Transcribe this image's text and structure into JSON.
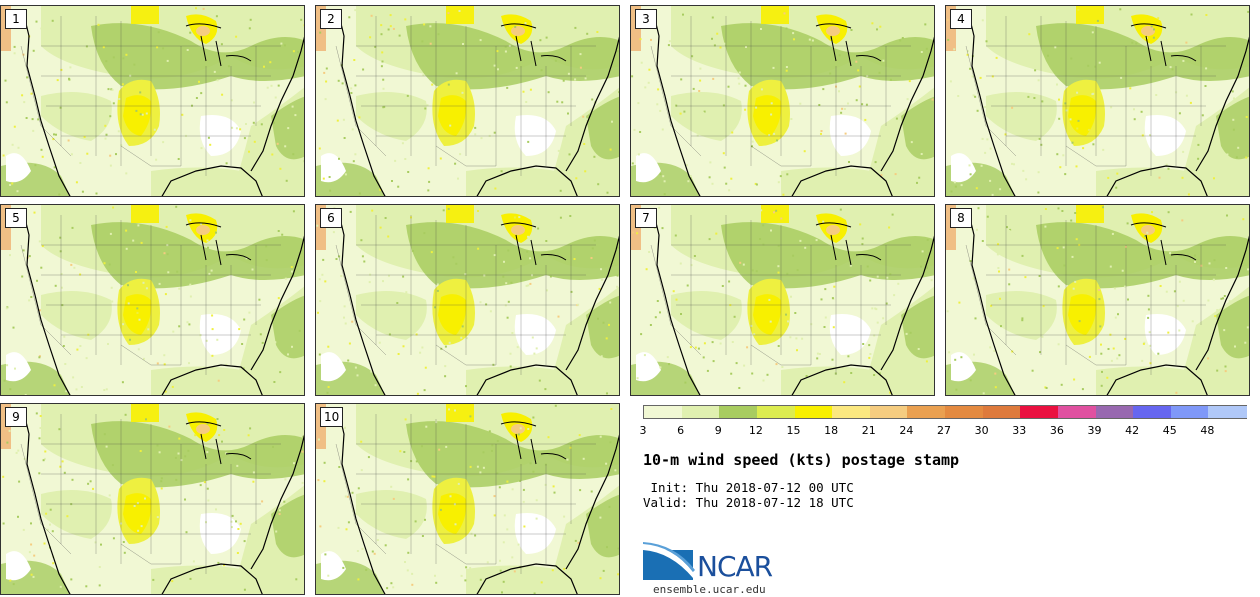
{
  "product": {
    "title": "10-m wind speed (kts) postage stamp",
    "init": " Init: Thu 2018-07-12 00 UTC",
    "valid": "Valid: Thu 2018-07-12 18 UTC"
  },
  "members": [
    "1",
    "2",
    "3",
    "4",
    "5",
    "6",
    "7",
    "8",
    "9",
    "10"
  ],
  "colorbar": {
    "ticks": [
      "3",
      "6",
      "9",
      "12",
      "15",
      "18",
      "21",
      "24",
      "27",
      "30",
      "33",
      "36",
      "39",
      "42",
      "45",
      "48"
    ],
    "colors": [
      "#f1f8d4",
      "#e0f0b0",
      "#a8cc60",
      "#dcec50",
      "#f8f000",
      "#fbe880",
      "#f5cc80",
      "#eaa050",
      "#e48a40",
      "#de7a3c",
      "#ea1040",
      "#e050a0",
      "#9868b0",
      "#6666f0",
      "#7f98f8",
      "#b0c8f8"
    ]
  },
  "map_colors": {
    "base": "#f1f8d4",
    "light": "#e0f0b0",
    "medium": "#a8cc60",
    "yellow": "#eef040",
    "bright": "#f8f000",
    "orange": "#f5cc80",
    "white": "#ffffff",
    "mountain": "#f0b070"
  },
  "branding": {
    "logo_text": "NCAR",
    "url": "ensemble.ucar.edu"
  }
}
